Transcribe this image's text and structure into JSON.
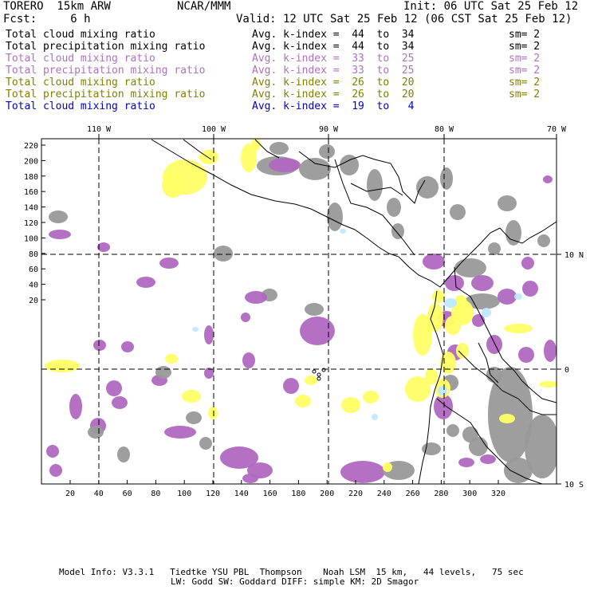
{
  "header": {
    "model": "TORERO  15km ARW",
    "org": "NCAR/MMM",
    "init": "Init: 06 UTC Sat 25 Feb 12",
    "fcst": "Fcst:     6 h",
    "valid": "Valid: 12 UTC Sat 25 Feb 12 (06 CST Sat 25 Feb 12)"
  },
  "fields": [
    {
      "name": "Total cloud mixing ratio",
      "index": "Avg. k-index =  44  to  34",
      "sm": "sm= 2",
      "color": "#000000"
    },
    {
      "name": "Total precipitation mixing ratio",
      "index": "Avg. k-index =  44  to  34",
      "sm": "sm= 2",
      "color": "#000000"
    },
    {
      "name": "Total cloud mixing ratio",
      "index": "Avg. k-index =  33  to  25",
      "sm": "sm= 2",
      "color": "#b070c0"
    },
    {
      "name": "Total precipitation mixing ratio",
      "index": "Avg. k-index =  33  to  25",
      "sm": "sm= 2",
      "color": "#b070c0"
    },
    {
      "name": "Total cloud mixing ratio",
      "index": "Avg. k-index =  26  to  20",
      "sm": "sm= 2",
      "color": "#808000"
    },
    {
      "name": "Total precipitation mixing ratio",
      "index": "Avg. k-index =  26  to  20",
      "sm": "sm= 2",
      "color": "#808000"
    },
    {
      "name": "Total cloud mixing ratio",
      "index": "Avg. k-index =  19  to   4",
      "sm": "",
      "color": "#0000cc"
    }
  ],
  "map": {
    "lon_labels": [
      "110 W",
      "100 W",
      "90 W",
      "80 W",
      "70 W"
    ],
    "lat_labels": [
      "10 N",
      "0",
      "10 S"
    ],
    "y_ticks": [
      "220",
      "200",
      "180",
      "160",
      "140",
      "120",
      "100",
      "80",
      "60",
      "40",
      "20"
    ],
    "x_ticks": [
      "20",
      "40",
      "60",
      "80",
      "100",
      "120",
      "140",
      "160",
      "180",
      "200",
      "220",
      "240",
      "260",
      "280",
      "300",
      "320"
    ],
    "colors": {
      "low": "#999999",
      "mid": "#b069c1",
      "high": "#ffff66",
      "top": "#bfe8ff"
    }
  },
  "footer": {
    "line1": "Model Info: V3.3.1   Tiedtke YSU PBL  Thompson    Noah LSM  15 km,   44 levels,   75 sec",
    "line2": "LW: Godd SW: Goddard DIFF: simple KM: 2D Smagor"
  }
}
